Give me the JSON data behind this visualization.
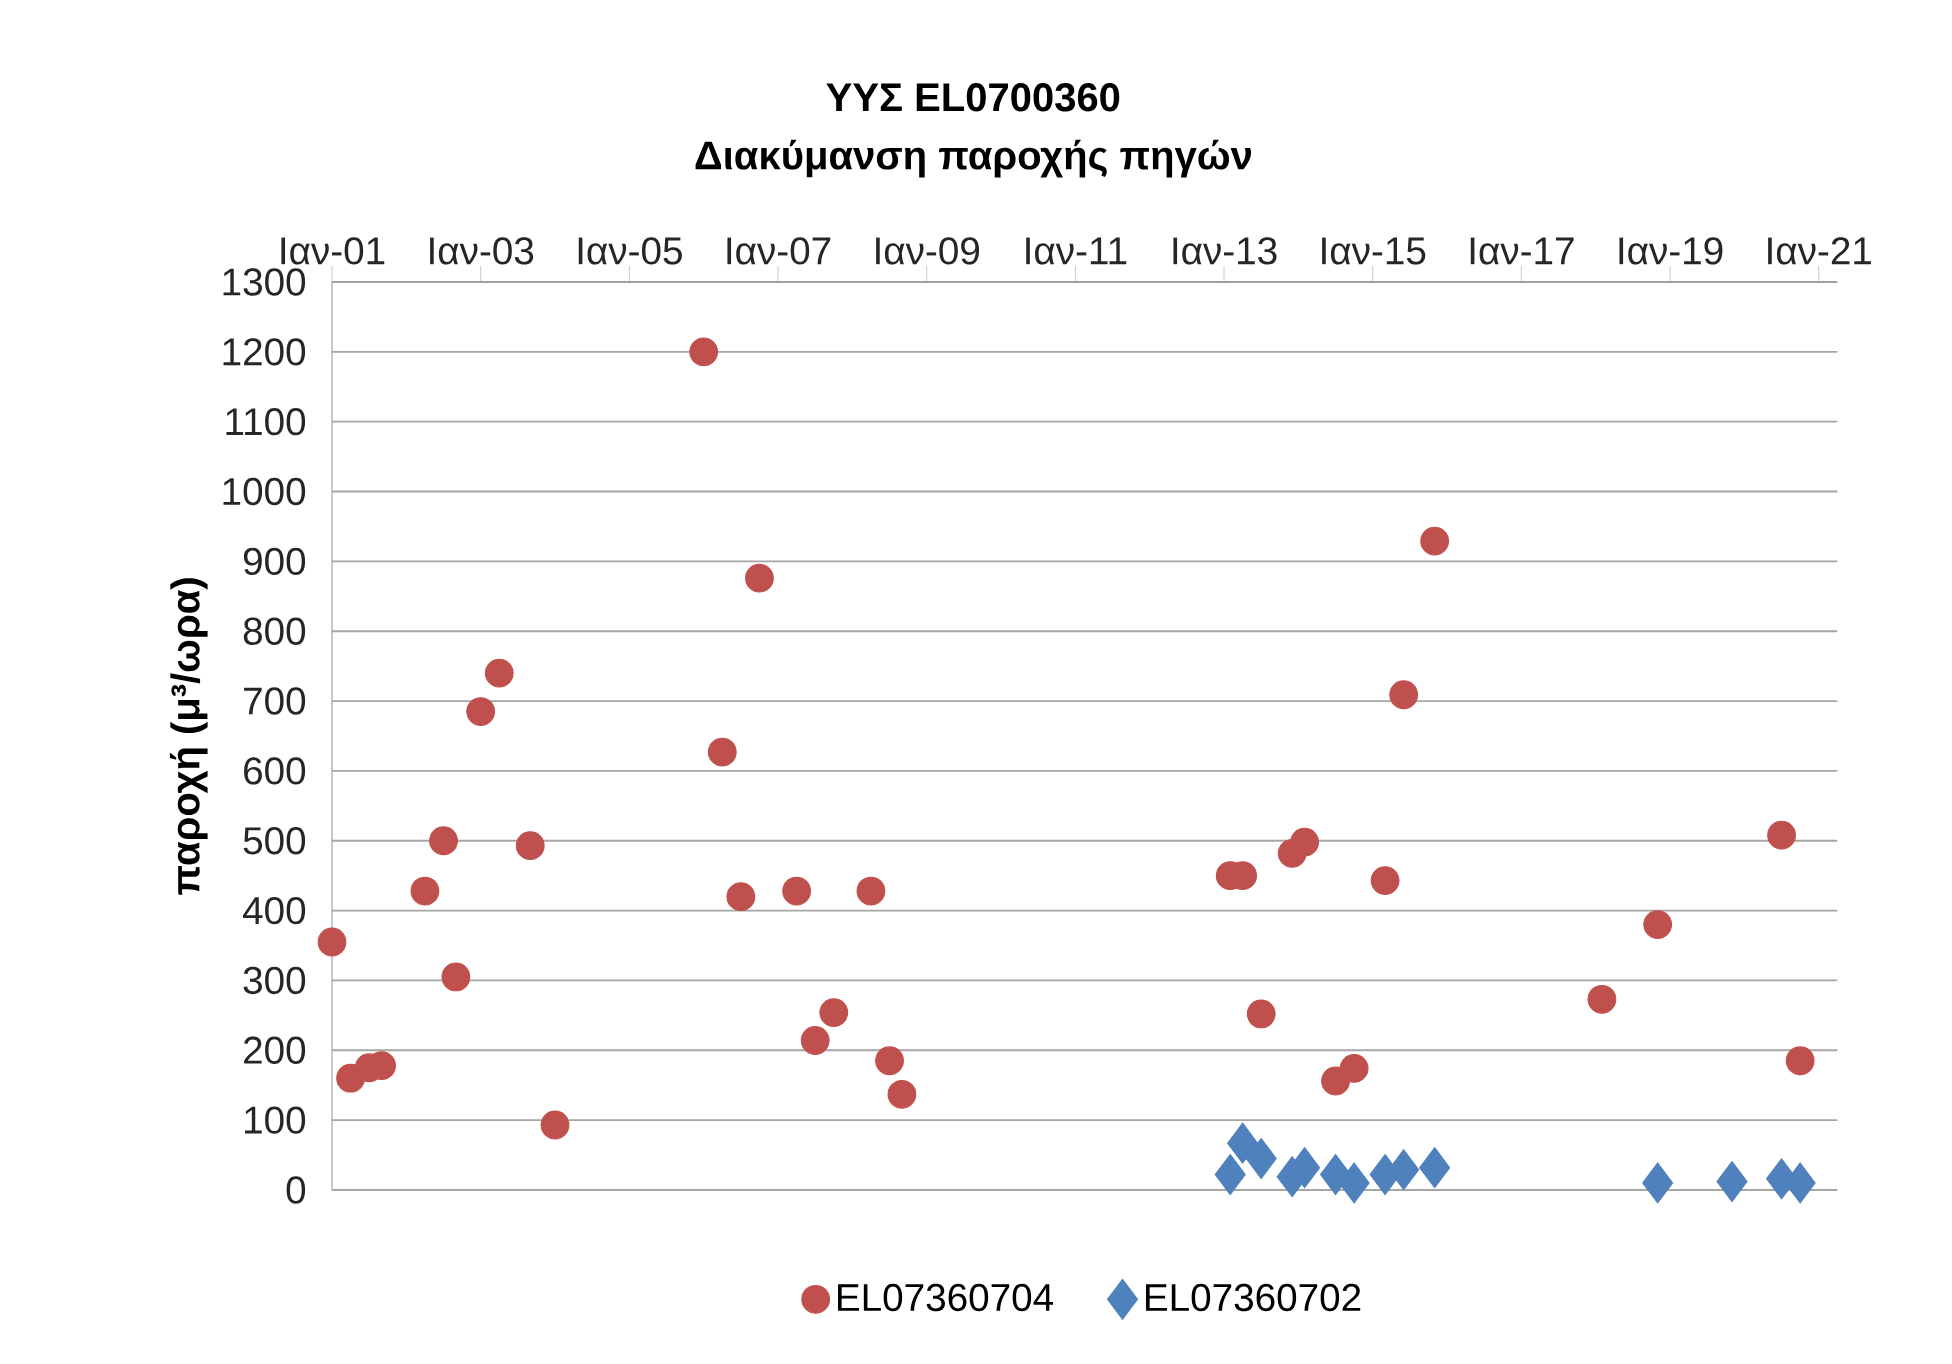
{
  "chart_data": {
    "type": "scatter",
    "title": "ΥΥΣ EL0700360",
    "subtitle": "Διακύμανση παροχής πηγών",
    "ylabel": "παροχή (μ³/ωρα)",
    "xlim": [
      "2001-01",
      "2021-04"
    ],
    "xticks": [
      {
        "value": "2001-01",
        "label": "Ιαν-01"
      },
      {
        "value": "2003-01",
        "label": "Ιαν-03"
      },
      {
        "value": "2005-01",
        "label": "Ιαν-05"
      },
      {
        "value": "2007-01",
        "label": "Ιαν-07"
      },
      {
        "value": "2009-01",
        "label": "Ιαν-09"
      },
      {
        "value": "2011-01",
        "label": "Ιαν-11"
      },
      {
        "value": "2013-01",
        "label": "Ιαν-13"
      },
      {
        "value": "2015-01",
        "label": "Ιαν-15"
      },
      {
        "value": "2017-01",
        "label": "Ιαν-17"
      },
      {
        "value": "2019-01",
        "label": "Ιαν-19"
      },
      {
        "value": "2021-01",
        "label": "Ιαν-21"
      }
    ],
    "ylim": [
      0,
      1300
    ],
    "yticks": [
      0,
      100,
      200,
      300,
      400,
      500,
      600,
      700,
      800,
      900,
      1000,
      1100,
      1200,
      1300
    ],
    "grid": "y",
    "legend": "bottom",
    "series": [
      {
        "name": "EL07360704",
        "color": "#c0504d",
        "marker": "circle",
        "x": [
          "2001-01",
          "2001-04",
          "2001-07",
          "2001-09",
          "2002-04",
          "2002-07",
          "2002-09",
          "2003-01",
          "2003-04",
          "2003-09",
          "2004-01",
          "2006-01",
          "2006-04",
          "2006-07",
          "2006-10",
          "2007-04",
          "2007-07",
          "2007-10",
          "2008-04",
          "2008-07",
          "2008-09",
          "2013-02",
          "2013-04",
          "2013-07",
          "2013-12",
          "2014-02",
          "2014-07",
          "2014-10",
          "2015-03",
          "2015-06",
          "2015-11",
          "2018-02",
          "2018-11",
          "2020-07",
          "2020-10"
        ],
        "values": [
          355,
          160,
          175,
          178,
          428,
          500,
          305,
          685,
          740,
          493,
          93,
          1200,
          627,
          420,
          876,
          428,
          214,
          254,
          428,
          185,
          137,
          450,
          450,
          252,
          482,
          498,
          156,
          174,
          443,
          709,
          929,
          273,
          380,
          508,
          185
        ]
      },
      {
        "name": "EL07360702",
        "color": "#4f81bd",
        "marker": "diamond",
        "x": [
          "2013-02",
          "2013-04",
          "2013-07",
          "2013-12",
          "2014-02",
          "2014-07",
          "2014-10",
          "2015-03",
          "2015-06",
          "2015-11",
          "2018-11",
          "2019-11",
          "2020-07",
          "2020-10"
        ],
        "values": [
          22,
          67,
          45,
          19,
          32,
          22,
          10,
          22,
          29,
          32,
          10,
          12,
          16,
          10
        ]
      }
    ]
  }
}
